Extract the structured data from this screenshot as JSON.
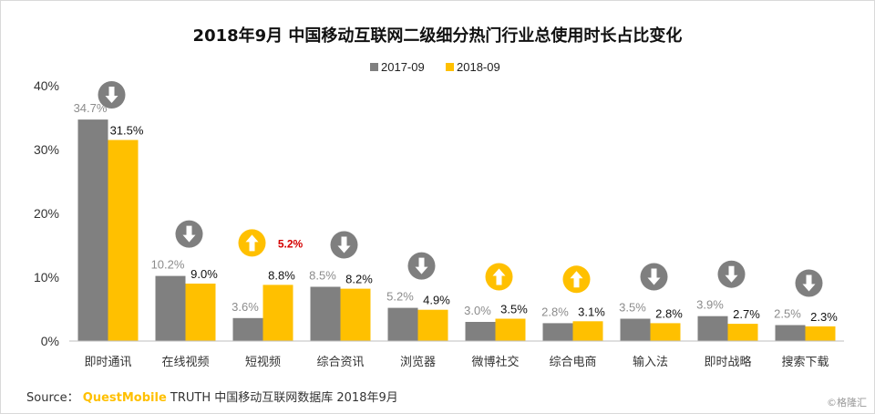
{
  "chart_data": {
    "type": "bar",
    "title": "2018年9月 中国移动互联网二级细分热门行业总使用时长占比变化",
    "categories": [
      "即时通讯",
      "在线视频",
      "短视频",
      "综合资讯",
      "浏览器",
      "微博社交",
      "综合电商",
      "输入法",
      "即时战略",
      "搜索下载"
    ],
    "series": [
      {
        "name": "2017-09",
        "color": "#808080",
        "values": [
          34.7,
          10.2,
          3.6,
          8.5,
          5.2,
          3.0,
          2.8,
          3.5,
          3.9,
          2.5
        ],
        "labels": [
          "34.7%",
          "10.2%",
          "3.6%",
          "8.5%",
          "5.2%",
          "3.0%",
          "2.8%",
          "3.5%",
          "3.9%",
          "2.5%"
        ]
      },
      {
        "name": "2018-09",
        "color": "#ffc000",
        "values": [
          31.5,
          9.0,
          8.8,
          8.2,
          4.9,
          3.5,
          3.1,
          2.8,
          2.7,
          2.3
        ],
        "labels": [
          "31.5%",
          "9.0%",
          "8.8%",
          "8.2%",
          "4.9%",
          "3.5%",
          "3.1%",
          "2.8%",
          "2.7%",
          "2.3%"
        ]
      }
    ],
    "trend": [
      "down",
      "down",
      "up",
      "down",
      "down",
      "up",
      "up",
      "down",
      "down",
      "down"
    ],
    "annotations": [
      {
        "category": "短视频",
        "text": "5.2%",
        "color": "#d40000"
      }
    ],
    "ylim": [
      0,
      40
    ],
    "yticks": [
      0,
      10,
      20,
      30,
      40
    ],
    "ytick_labels": [
      "0%",
      "10%",
      "20%",
      "30%",
      "40%"
    ],
    "xlabel": "",
    "ylabel": "",
    "legend_position": "top-center",
    "grid": false,
    "trend_colors": {
      "up": "#ffc000",
      "down": "#7f7f7f"
    }
  },
  "source": {
    "prefix": "Source：",
    "brand": "QuestMobile",
    "rest": "TRUTH 中国移动互联网数据库 2018年9月"
  },
  "watermark": "©格隆汇"
}
